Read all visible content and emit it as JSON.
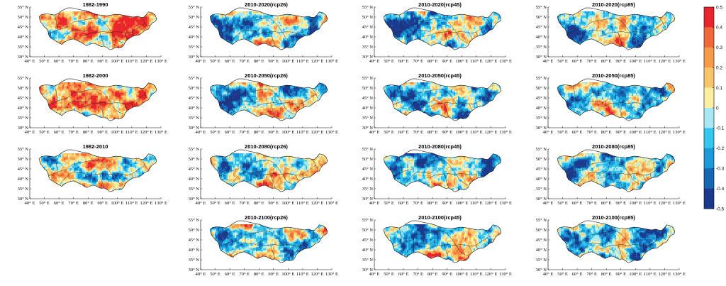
{
  "panels": [
    {
      "title": "1982-1990",
      "row": 0,
      "col": 0,
      "seed": 11,
      "bias": 0.2
    },
    {
      "title": "2010-2020(rcp26)",
      "row": 0,
      "col": 1,
      "seed": 12,
      "bias": -0.02
    },
    {
      "title": "2010-2020(rcp45)",
      "row": 0,
      "col": 2,
      "seed": 13,
      "bias": -0.05
    },
    {
      "title": "2010-2020(rcp85)",
      "row": 0,
      "col": 3,
      "seed": 14,
      "bias": -0.04
    },
    {
      "title": "1982-2000",
      "row": 1,
      "col": 0,
      "seed": 21,
      "bias": 0.12
    },
    {
      "title": "2010-2050(rcp26)",
      "row": 1,
      "col": 1,
      "seed": 22,
      "bias": -0.03
    },
    {
      "title": "2010-2050(rcp45)",
      "row": 1,
      "col": 2,
      "seed": 23,
      "bias": -0.08
    },
    {
      "title": "2010-2050(rcp85)",
      "row": 1,
      "col": 3,
      "seed": 24,
      "bias": -0.09
    },
    {
      "title": "1982-2010",
      "row": 2,
      "col": 0,
      "seed": 31,
      "bias": 0.02
    },
    {
      "title": "2010-2080(rcp26)",
      "row": 2,
      "col": 1,
      "seed": 32,
      "bias": -0.02
    },
    {
      "title": "2010-2080(rcp45)",
      "row": 2,
      "col": 2,
      "seed": 33,
      "bias": -0.1
    },
    {
      "title": "2010-2080(rcp85)",
      "row": 2,
      "col": 3,
      "seed": 34,
      "bias": -0.12
    },
    {
      "title": "2010-2100(rcp26)",
      "row": 3,
      "col": 1,
      "seed": 42,
      "bias": 0.0
    },
    {
      "title": "2010-2100(rcp45)",
      "row": 3,
      "col": 2,
      "seed": 43,
      "bias": -0.07
    },
    {
      "title": "2010-2100(rcp85)",
      "row": 3,
      "col": 3,
      "seed": 44,
      "bias": -0.15
    }
  ],
  "lat_ticks": [
    "55° N",
    "50° N",
    "45° N",
    "40° N",
    "35° N",
    "30° N"
  ],
  "lon_ticks": [
    "40° E",
    "50° E",
    "60° E",
    "70° E",
    "80° E",
    "90° E",
    "100° E",
    "110° E",
    "120° E",
    "130° E"
  ],
  "colorbar": {
    "ticks": [
      "0.5",
      "0.4",
      "0.3",
      "0.2",
      "0.1",
      "0",
      "-0.1",
      "-0.2",
      "-0.3",
      "-0.4",
      "-0.5"
    ],
    "colors": [
      "#e8262b",
      "#f2673a",
      "#f59b4a",
      "#f7c66a",
      "#fcefa0",
      "#a9e7f2",
      "#33c6ef",
      "#1a9ad8",
      "#1668b5",
      "#1b3a8e"
    ],
    "range": [
      -0.5,
      0.5
    ]
  }
}
